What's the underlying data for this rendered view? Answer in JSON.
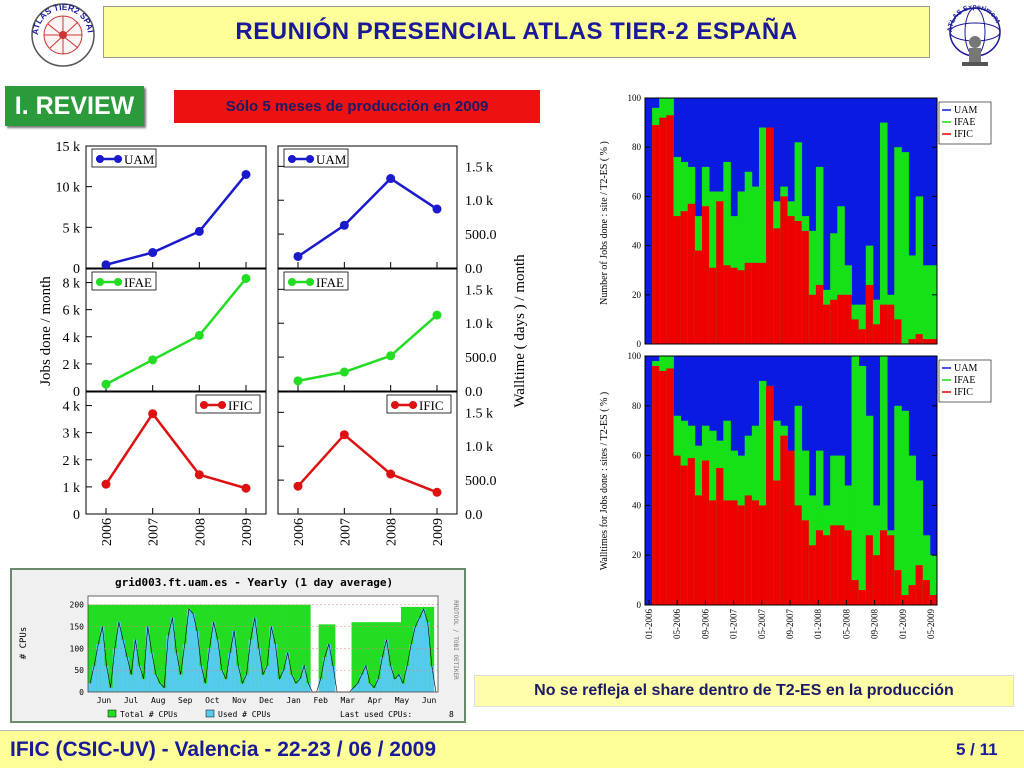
{
  "slide": {
    "title": "REUNIÓN  PRESENCIAL  ATLAS  TIER-2  ESPAÑA",
    "logo_left_text": "ATLAS TIER2 SPAIN",
    "logo_right_text": "ATLAS Experiment",
    "section_label": "I. REVIEW",
    "red_note": "Sólo 5 meses de producción en 2009",
    "yellow_note": "No se refleja el share dentro de T2-ES en la producción",
    "footer_text": "IFIC (CSIC-UV)  -  Valencia  -  22-23 / 06 / 2009",
    "page_number": "5 / 11"
  },
  "chart_data": [
    {
      "type": "line",
      "title": "",
      "ylabel": "Jobs done / month",
      "x": [
        "2006",
        "2007",
        "2008",
        "2009"
      ],
      "panels": [
        {
          "series_name": "UAM",
          "color": "#1a1acc",
          "values": [
            400,
            1900,
            4500,
            11500
          ],
          "ylim": [
            0,
            15000
          ],
          "yticks": [
            "0",
            "5 k",
            "10 k",
            "15 k"
          ]
        },
        {
          "series_name": "IFAE",
          "color": "#22dd22",
          "values": [
            500,
            2300,
            4100,
            8300
          ],
          "ylim": [
            0,
            9000
          ],
          "yticks": [
            "0",
            "2 k",
            "4 k",
            "6 k",
            "8 k"
          ]
        },
        {
          "series_name": "IFIC",
          "color": "#dd1111",
          "values": [
            1100,
            3700,
            1450,
            950
          ],
          "ylim": [
            0,
            4500
          ],
          "yticks": [
            "0",
            "1 k",
            "2 k",
            "3 k",
            "4 k"
          ]
        }
      ]
    },
    {
      "type": "line",
      "title": "",
      "ylabel": "Walltime ( days ) / month",
      "x": [
        "2006",
        "2007",
        "2008",
        "2009"
      ],
      "panels": [
        {
          "series_name": "UAM",
          "color": "#1a1acc",
          "values": [
            170,
            630,
            1320,
            870
          ],
          "ylim": [
            0,
            1800
          ],
          "yticks": [
            "0.0",
            "500.0",
            "1.0 k",
            "1.5 k"
          ]
        },
        {
          "series_name": "IFAE",
          "color": "#22dd22",
          "values": [
            150,
            280,
            520,
            1120
          ],
          "ylim": [
            0,
            1800
          ],
          "yticks": [
            "0.0",
            "500.0",
            "1.0 k",
            "1.5 k"
          ]
        },
        {
          "series_name": "IFIC",
          "color": "#dd1111",
          "values": [
            410,
            1170,
            590,
            320
          ],
          "ylim": [
            0,
            1800
          ],
          "yticks": [
            "0.0",
            "500.0",
            "1.0 k",
            "1.5 k"
          ]
        }
      ]
    },
    {
      "type": "area",
      "title": "",
      "ylabel": "Number of Jobs done :  site / T2-ES  ( % )",
      "ylim": [
        0,
        100
      ],
      "yticks": [
        "0",
        "20",
        "40",
        "60",
        "80",
        "100"
      ],
      "legend": [
        "UAM",
        "IFAE",
        "IFIC"
      ],
      "colors": {
        "UAM": "#0a1ae0",
        "IFAE": "#16e016",
        "IFIC": "#ee0000"
      },
      "ific": [
        0,
        89,
        92,
        93,
        52,
        54,
        57,
        38,
        56,
        31,
        58,
        32,
        31,
        30,
        33,
        33,
        33,
        88,
        47,
        60,
        52,
        50,
        46,
        20,
        24,
        16,
        18,
        20,
        20,
        10,
        6,
        24,
        8,
        16,
        16,
        10,
        0,
        2,
        4,
        2,
        2
      ],
      "ific_ifae": [
        0,
        96,
        100,
        100,
        76,
        74,
        72,
        52,
        72,
        62,
        62,
        74,
        52,
        62,
        70,
        64,
        88,
        88,
        58,
        64,
        58,
        82,
        52,
        46,
        72,
        22,
        45,
        56,
        32,
        16,
        16,
        40,
        18,
        90,
        20,
        80,
        78,
        36,
        60,
        32,
        32
      ],
      "x_dates": [
        "01-2006",
        "05-2006",
        "09-2006",
        "01-2007",
        "05-2007",
        "09-2007",
        "01-2008",
        "05-2008",
        "09-2008",
        "01-2009",
        "05-2009"
      ]
    },
    {
      "type": "area",
      "title": "",
      "ylabel": "Walltimes for Jobs done :  sites / T2-ES  ( % )",
      "ylim": [
        0,
        100
      ],
      "yticks": [
        "0",
        "20",
        "40",
        "60",
        "80",
        "100"
      ],
      "legend": [
        "UAM",
        "IFAE",
        "IFIC"
      ],
      "colors": {
        "UAM": "#0a1ae0",
        "IFAE": "#16e016",
        "IFIC": "#ee0000"
      },
      "ific": [
        0,
        96,
        94,
        95,
        60,
        56,
        59,
        44,
        58,
        42,
        55,
        42,
        42,
        40,
        44,
        42,
        40,
        88,
        50,
        68,
        62,
        40,
        34,
        24,
        30,
        28,
        32,
        32,
        30,
        10,
        6,
        28,
        20,
        30,
        28,
        14,
        4,
        8,
        16,
        10,
        4
      ],
      "ific_ifae": [
        0,
        98,
        100,
        100,
        76,
        74,
        72,
        64,
        72,
        70,
        66,
        74,
        62,
        60,
        68,
        72,
        90,
        88,
        74,
        72,
        60,
        80,
        62,
        44,
        62,
        40,
        60,
        60,
        48,
        100,
        96,
        76,
        40,
        100,
        30,
        80,
        78,
        60,
        50,
        28,
        20
      ],
      "x_dates": [
        "01-2006",
        "05-2006",
        "09-2006",
        "01-2007",
        "05-2007",
        "09-2007",
        "01-2008",
        "05-2008",
        "09-2008",
        "01-2009",
        "05-2009"
      ]
    },
    {
      "type": "area",
      "title": "grid003.ft.uam.es - Yearly (1 day average)",
      "ylabel": "# CPUs",
      "side_label": "RRDTOOL / TOBI OETIKER",
      "ylim": [
        0,
        220
      ],
      "yticks": [
        "0",
        "50",
        "100",
        "150",
        "200"
      ],
      "x_months": [
        "Jun",
        "Jul",
        "Aug",
        "Sep",
        "Oct",
        "Nov",
        "Dec",
        "Jan",
        "Feb",
        "Mar",
        "Apr",
        "May",
        "Jun"
      ],
      "legend": [
        {
          "label": "Total # CPUs",
          "color": "#22dd22"
        },
        {
          "label": "Used # CPUs",
          "color": "#55ccee"
        },
        {
          "label": "Last used CPUs:",
          "color": "#000000",
          "value": "8"
        }
      ],
      "total": [
        200,
        200,
        200,
        200,
        200,
        200,
        200,
        200,
        200,
        200,
        200,
        200,
        200,
        200,
        200,
        200,
        200,
        200,
        200,
        200,
        200,
        200,
        200,
        200,
        200,
        200,
        200,
        200,
        200,
        200,
        200,
        200,
        200,
        200,
        200,
        200,
        200,
        200,
        200,
        200,
        200,
        200,
        200,
        200,
        200,
        200,
        200,
        200,
        200,
        200,
        200,
        200,
        200,
        200,
        0,
        0,
        155,
        155,
        155,
        155,
        0,
        0,
        0,
        0,
        160,
        160,
        160,
        160,
        160,
        160,
        160,
        160,
        160,
        160,
        160,
        160,
        195,
        195,
        195,
        195,
        195,
        195,
        195,
        195,
        0
      ],
      "used": [
        20,
        60,
        110,
        150,
        60,
        10,
        100,
        160,
        120,
        80,
        40,
        120,
        60,
        30,
        150,
        90,
        40,
        20,
        10,
        130,
        170,
        90,
        40,
        110,
        190,
        180,
        140,
        60,
        20,
        100,
        160,
        120,
        50,
        30,
        90,
        140,
        60,
        20,
        40,
        120,
        170,
        100,
        40,
        60,
        150,
        110,
        30,
        50,
        90,
        40,
        20,
        30,
        60,
        20,
        0,
        0,
        30,
        80,
        110,
        60,
        0,
        0,
        0,
        0,
        10,
        20,
        40,
        60,
        20,
        10,
        30,
        80,
        120,
        60,
        30,
        40,
        20,
        60,
        110,
        150,
        170,
        190,
        160,
        60,
        0
      ]
    }
  ]
}
